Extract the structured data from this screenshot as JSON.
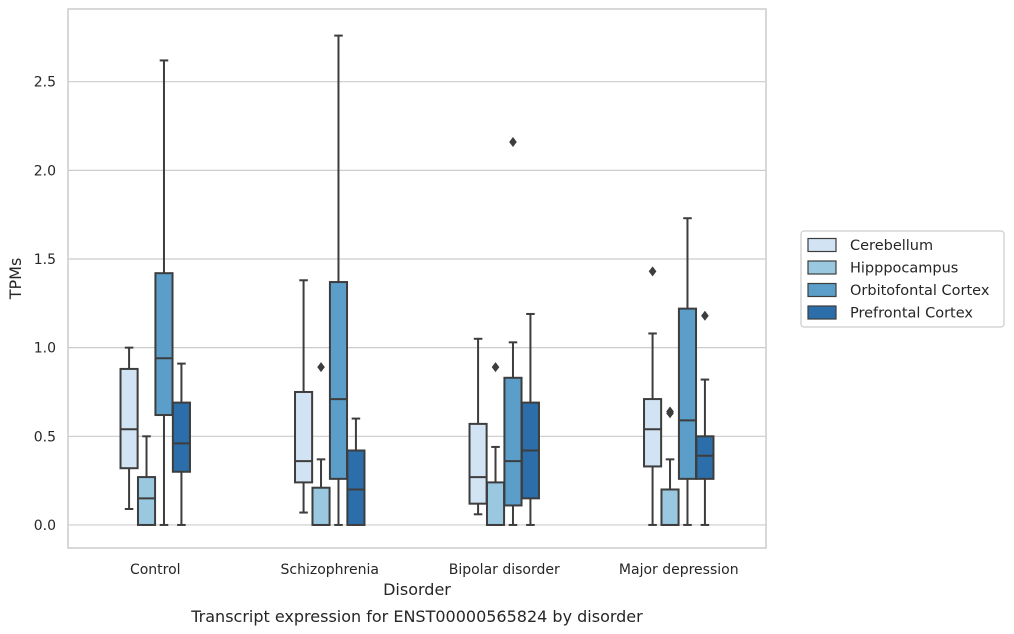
{
  "chart_data": {
    "type": "box",
    "caption": "Transcript expression for ENST00000565824 by disorder",
    "xlabel": "Disorder",
    "ylabel": "TPMs",
    "ylim": [
      -0.13,
      2.91
    ],
    "yticks": [
      "0.0",
      "0.5",
      "1.0",
      "1.5",
      "2.0",
      "2.5"
    ],
    "grid": true,
    "legend_position": "right",
    "categories": [
      "Control",
      "Schizophrenia",
      "Bipolar disorder",
      "Major depression"
    ],
    "series": [
      {
        "name": "Cerebellum",
        "color": "#d2e3f3",
        "boxes": [
          {
            "whislo": 0.09,
            "q1": 0.32,
            "med": 0.54,
            "q3": 0.88,
            "whishi": 1.0,
            "fliers": []
          },
          {
            "whislo": 0.07,
            "q1": 0.24,
            "med": 0.36,
            "q3": 0.75,
            "whishi": 1.38,
            "fliers": []
          },
          {
            "whislo": 0.06,
            "q1": 0.12,
            "med": 0.27,
            "q3": 0.57,
            "whishi": 1.05,
            "fliers": []
          },
          {
            "whislo": 0.0,
            "q1": 0.33,
            "med": 0.54,
            "q3": 0.71,
            "whishi": 1.08,
            "fliers": [
              1.43
            ]
          }
        ]
      },
      {
        "name": "Hipppocampus",
        "color": "#9ac8e0",
        "boxes": [
          {
            "whislo": 0.0,
            "q1": 0.0,
            "med": 0.15,
            "q3": 0.27,
            "whishi": 0.5,
            "fliers": []
          },
          {
            "whislo": 0.0,
            "q1": 0.0,
            "med": 0.0,
            "q3": 0.21,
            "whishi": 0.37,
            "fliers": [
              0.89
            ]
          },
          {
            "whislo": 0.0,
            "q1": 0.0,
            "med": 0.0,
            "q3": 0.24,
            "whishi": 0.44,
            "fliers": [
              0.89
            ]
          },
          {
            "whislo": 0.0,
            "q1": 0.0,
            "med": 0.0,
            "q3": 0.2,
            "whishi": 0.37,
            "fliers": [
              0.63,
              0.64
            ]
          }
        ]
      },
      {
        "name": "Orbitofontal Cortex",
        "color": "#5a9ec9",
        "boxes": [
          {
            "whislo": 0.0,
            "q1": 0.62,
            "med": 0.94,
            "q3": 1.42,
            "whishi": 2.62,
            "fliers": []
          },
          {
            "whislo": 0.0,
            "q1": 0.26,
            "med": 0.71,
            "q3": 1.37,
            "whishi": 2.76,
            "fliers": []
          },
          {
            "whislo": 0.0,
            "q1": 0.11,
            "med": 0.36,
            "q3": 0.83,
            "whishi": 1.03,
            "fliers": [
              2.16
            ]
          },
          {
            "whislo": 0.0,
            "q1": 0.26,
            "med": 0.59,
            "q3": 1.22,
            "whishi": 1.73,
            "fliers": []
          }
        ]
      },
      {
        "name": "Prefrontal Cortex",
        "color": "#2c6ea9",
        "boxes": [
          {
            "whislo": 0.0,
            "q1": 0.3,
            "med": 0.46,
            "q3": 0.69,
            "whishi": 0.91,
            "fliers": []
          },
          {
            "whislo": 0.0,
            "q1": 0.0,
            "med": 0.2,
            "q3": 0.42,
            "whishi": 0.6,
            "fliers": []
          },
          {
            "whislo": 0.0,
            "q1": 0.15,
            "med": 0.42,
            "q3": 0.69,
            "whishi": 1.19,
            "fliers": []
          },
          {
            "whislo": 0.0,
            "q1": 0.26,
            "med": 0.39,
            "q3": 0.5,
            "whishi": 0.82,
            "fliers": [
              1.18
            ]
          }
        ]
      }
    ]
  }
}
